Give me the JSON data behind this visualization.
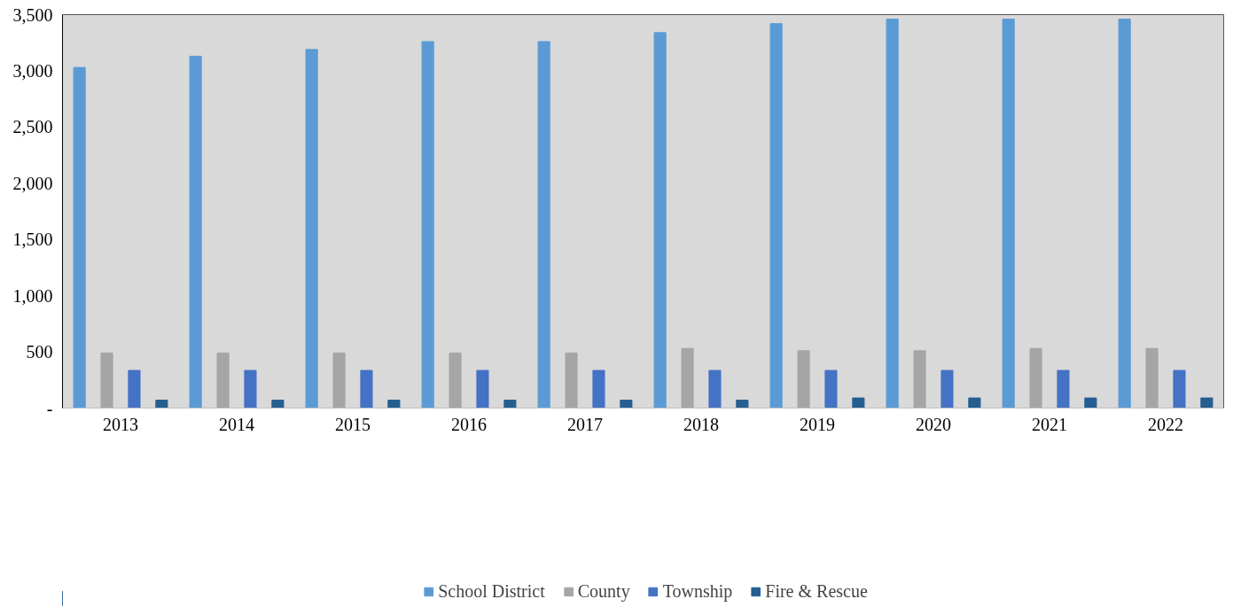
{
  "chart_data": {
    "type": "bar",
    "categories": [
      "2013",
      "2014",
      "2015",
      "2016",
      "2017",
      "2018",
      "2019",
      "2020",
      "2021",
      "2022"
    ],
    "series": [
      {
        "name": "School District",
        "color": "#5b9bd5",
        "values": [
          3030,
          3130,
          3190,
          3260,
          3260,
          3340,
          3420,
          3460,
          3460,
          3460
        ]
      },
      {
        "name": "County",
        "color": "#a5a5a5",
        "values": [
          490,
          490,
          490,
          490,
          490,
          530,
          510,
          510,
          530,
          530
        ]
      },
      {
        "name": "Township",
        "color": "#4472c4",
        "values": [
          335,
          335,
          335,
          335,
          335,
          335,
          335,
          335,
          335,
          335
        ]
      },
      {
        "name": "Fire & Rescue",
        "color": "#255e91",
        "values": [
          70,
          70,
          70,
          70,
          70,
          70,
          90,
          90,
          90,
          90
        ]
      }
    ],
    "ylim": [
      0,
      3500
    ],
    "yticks": [
      {
        "value": 0,
        "label": "-"
      },
      500,
      {
        "value": 1000,
        "label": "1,000"
      },
      {
        "value": 1500,
        "label": "1,500"
      },
      {
        "value": 2000,
        "label": "2,000"
      },
      {
        "value": 2500,
        "label": "2,500"
      },
      {
        "value": 3000,
        "label": "3,000"
      },
      {
        "value": 3500,
        "label": "3,500"
      }
    ],
    "grid": false,
    "legend": "bottom"
  }
}
